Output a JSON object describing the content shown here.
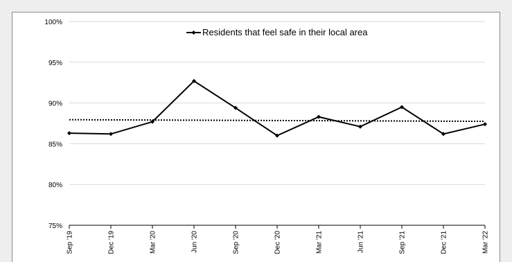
{
  "chart_data": {
    "type": "line",
    "title": "",
    "xlabel": "",
    "ylabel": "",
    "categories": [
      "Sep '19",
      "Dec '19",
      "Mar '20",
      "Jun '20",
      "Sep '20",
      "Dec '20",
      "Mar '21",
      "Jun '21",
      "Sep '21",
      "Dec '21",
      "Mar '22"
    ],
    "series": [
      {
        "name": "Residents that feel safe in their local area",
        "values": [
          86.3,
          86.2,
          87.7,
          92.7,
          89.4,
          86.0,
          88.3,
          87.1,
          89.5,
          86.2,
          87.4
        ],
        "color": "#000000",
        "marker": "diamond"
      }
    ],
    "trendline": {
      "style": "dotted",
      "color": "#000000",
      "start": 87.95,
      "end": 87.75
    },
    "ylim": [
      75,
      100
    ],
    "yticks": [
      "75%",
      "80%",
      "85%",
      "90%",
      "95%",
      "100%"
    ],
    "grid": "horizontal",
    "legend_position": "top-center"
  },
  "colors": {
    "background": "#eeeeee",
    "plot_background": "#ffffff",
    "gridline": "#d9d9d9"
  }
}
